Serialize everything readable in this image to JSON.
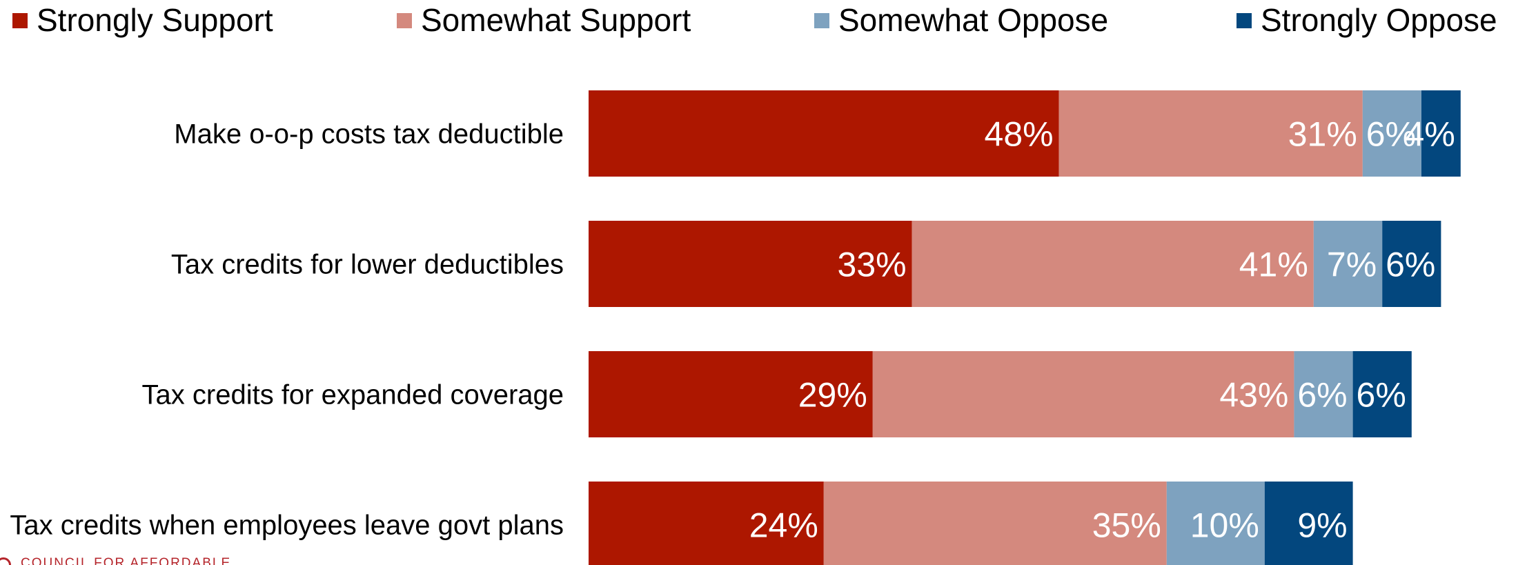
{
  "chart_data": {
    "type": "bar",
    "orientation": "horizontal",
    "stacked": true,
    "title": "",
    "xlabel": "",
    "ylabel": "",
    "categories": [
      "Make o-o-p costs tax deductible",
      "Tax credits for lower deductibles",
      "Tax credits for expanded coverage",
      "Tax credits when employees leave govt plans"
    ],
    "series": [
      {
        "name": "Strongly Support",
        "color": "#ad1700",
        "values": [
          48,
          33,
          29,
          24
        ],
        "labels": [
          "48%",
          "33%",
          "29%",
          "24%"
        ]
      },
      {
        "name": "Somewhat Support",
        "color": "#d4897e",
        "values": [
          31,
          41,
          43,
          35
        ],
        "labels": [
          "31%",
          "41%",
          "43%",
          "35%"
        ]
      },
      {
        "name": "Somewhat Oppose",
        "color": "#7ea2bf",
        "values": [
          6,
          7,
          6,
          10
        ],
        "labels": [
          "6%",
          "7%",
          "6%",
          "10%"
        ]
      },
      {
        "name": "Strongly Oppose",
        "color": "#03477e",
        "values": [
          4,
          6,
          6,
          9
        ],
        "labels": [
          "4%",
          "6%",
          "6%",
          "9%"
        ]
      }
    ],
    "legend_position": "top",
    "grid": false
  },
  "footer": {
    "org_text": "COUNCIL FOR AFFORDABLE"
  }
}
